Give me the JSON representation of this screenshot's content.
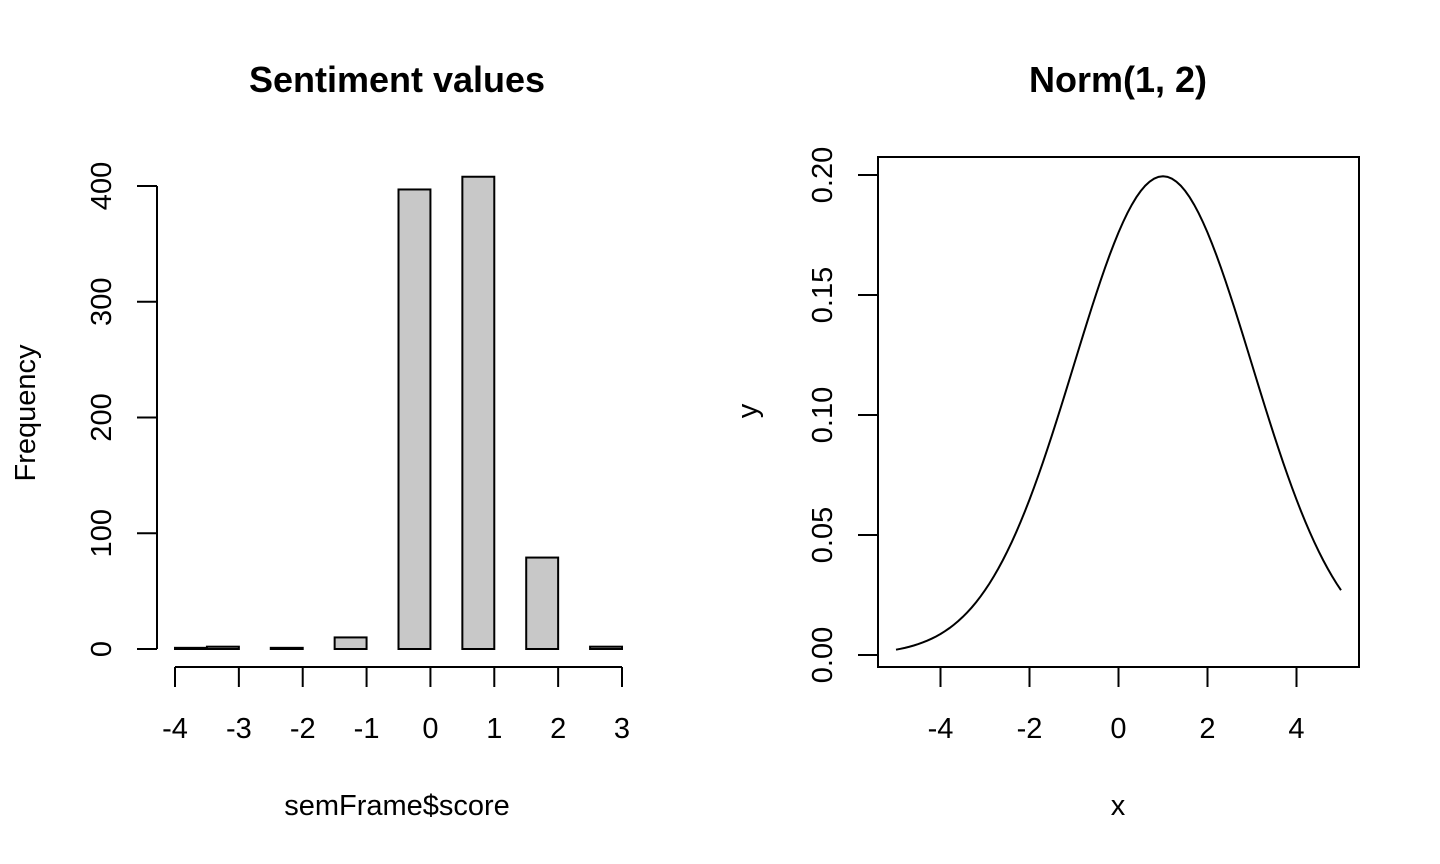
{
  "chart_data": [
    {
      "type": "bar",
      "title": "Sentiment values",
      "xlabel": "semFrame$score",
      "ylabel": "Frequency",
      "categories": [
        "-3.5",
        "-3",
        "-2",
        "-1",
        "0",
        "1",
        "2",
        "3"
      ],
      "x_left": [
        -4,
        -3.5,
        -2.5,
        -1.5,
        -0.5,
        0.5,
        1.5,
        2.5
      ],
      "x_right": [
        -3.5,
        -3,
        -2,
        -1,
        0,
        1,
        2,
        3
      ],
      "values": [
        1,
        2,
        1,
        10,
        397,
        408,
        79,
        2
      ],
      "xlim": [
        -4,
        3
      ],
      "ylim": [
        0,
        400
      ],
      "xticks": [
        -4,
        -3,
        -2,
        -1,
        0,
        1,
        2,
        3
      ],
      "yticks": [
        0,
        100,
        200,
        300,
        400
      ],
      "grid": false
    },
    {
      "type": "line",
      "title": "Norm(1, 2)",
      "xlabel": "x",
      "ylabel": "y",
      "series": [
        {
          "mean": 1,
          "sd": 2,
          "x_range": [
            -5,
            5
          ],
          "samples": 101
        }
      ],
      "xlim": [
        -5,
        5
      ],
      "ylim": [
        0,
        0.2
      ],
      "xticks": [
        -4,
        -2,
        0,
        2,
        4
      ],
      "yticks": [
        "0.00",
        "0.05",
        "0.10",
        "0.15",
        "0.20"
      ],
      "grid": false
    }
  ]
}
